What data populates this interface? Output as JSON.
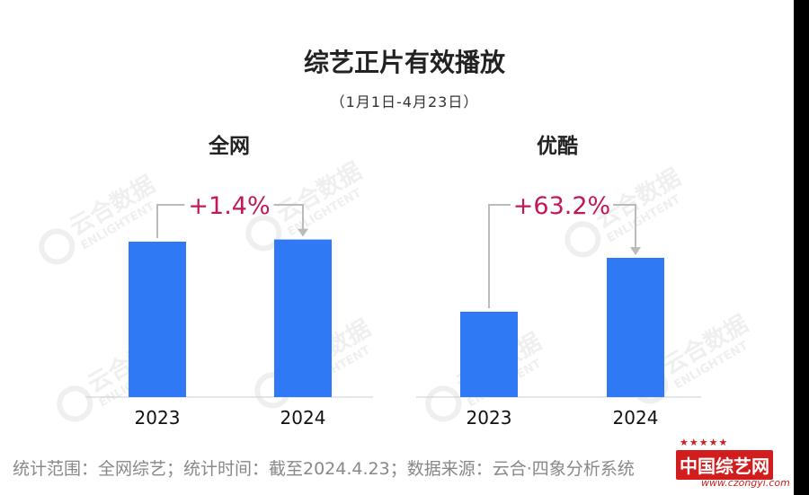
{
  "title": "综艺正片有效播放",
  "subtitle": "（1月1日-4月23日）",
  "watermark": {
    "cn": "云合数据",
    "en": "ENLIGHTENT"
  },
  "colors": {
    "bar": "#2f79f5",
    "annotation": "#c0185a",
    "arrow": "#bbbbbb",
    "axis": "#cccccc"
  },
  "chart_data": [
    {
      "type": "bar",
      "title": "全网",
      "categories": [
        "2023",
        "2024"
      ],
      "values": [
        1.0,
        1.014
      ],
      "annotation": "+1.4%"
    },
    {
      "type": "bar",
      "title": "优酷",
      "categories": [
        "2023",
        "2024"
      ],
      "values": [
        1.0,
        1.632
      ],
      "annotation": "+63.2%"
    }
  ],
  "footer": "统计范围：全网综艺；统计时间：截至2024.4.23；数据来源：云合·四象分析系统",
  "logo": {
    "text": "中国综艺网",
    "url": "www.czongyi.com",
    "stars": "★★★★★"
  }
}
